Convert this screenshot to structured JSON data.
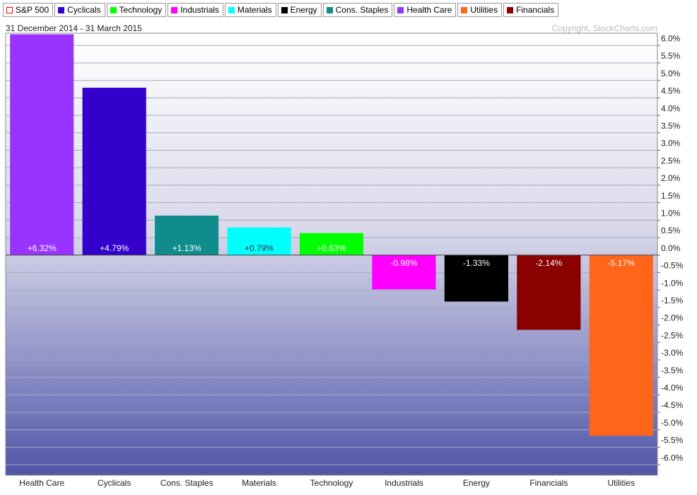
{
  "chart_data": {
    "type": "bar",
    "subtitle": "31 December 2014 - 31 March 2015",
    "annotation": "Copyright, StockCharts.com",
    "legend": [
      {
        "name": "S&P 500",
        "color": "#ff0000",
        "marker": "hollow"
      },
      {
        "name": "Cyclicals",
        "color": "#3300cc"
      },
      {
        "name": "Technology",
        "color": "#00ff00"
      },
      {
        "name": "Industrials",
        "color": "#ff00ff"
      },
      {
        "name": "Materials",
        "color": "#00ffff"
      },
      {
        "name": "Energy",
        "color": "#000000"
      },
      {
        "name": "Cons. Staples",
        "color": "#108c8c"
      },
      {
        "name": "Health Care",
        "color": "#9933ff"
      },
      {
        "name": "Utilities",
        "color": "#ff6619"
      },
      {
        "name": "Financials",
        "color": "#8b0000"
      }
    ],
    "categories": [
      "Health Care",
      "Cyclicals",
      "Cons. Staples",
      "Materials",
      "Technology",
      "Industrials",
      "Energy",
      "Financials",
      "Utilities"
    ],
    "values": [
      6.32,
      4.79,
      1.13,
      0.79,
      0.63,
      -0.98,
      -1.33,
      -2.14,
      -5.17
    ],
    "value_labels": [
      "+6.32%",
      "+4.79%",
      "+1.13%",
      "+0.79%",
      "+0.63%",
      "-0.98%",
      "-1.33%",
      "-2.14%",
      "-5.17%"
    ],
    "colors": [
      "#9933ff",
      "#3300cc",
      "#108c8c",
      "#00ffff",
      "#00ff00",
      "#ff00ff",
      "#000000",
      "#8b0000",
      "#ff6619"
    ],
    "ylim": [
      -6.3,
      6.35
    ],
    "yticks": [
      {
        "value": 6.0,
        "label": "6.0%"
      },
      {
        "value": 5.5,
        "label": "5.5%"
      },
      {
        "value": 5.0,
        "label": "5.0%"
      },
      {
        "value": 4.5,
        "label": "4.5%"
      },
      {
        "value": 4.0,
        "label": "4.0%"
      },
      {
        "value": 3.5,
        "label": "3.5%"
      },
      {
        "value": 3.0,
        "label": "3.0%"
      },
      {
        "value": 2.5,
        "label": "2.5%"
      },
      {
        "value": 2.0,
        "label": "2.0%"
      },
      {
        "value": 1.5,
        "label": "1.5%"
      },
      {
        "value": 1.0,
        "label": "1.0%"
      },
      {
        "value": 0.5,
        "label": "0.5%"
      },
      {
        "value": 0.0,
        "label": "0.0%"
      },
      {
        "value": -0.5,
        "label": "-0.5%"
      },
      {
        "value": -1.0,
        "label": "-1.0%"
      },
      {
        "value": -1.5,
        "label": "-1.5%"
      },
      {
        "value": -2.0,
        "label": "-2.0%"
      },
      {
        "value": -2.5,
        "label": "-2.5%"
      },
      {
        "value": -3.0,
        "label": "-3.0%"
      },
      {
        "value": -3.5,
        "label": "-3.5%"
      },
      {
        "value": -4.0,
        "label": "-4.0%"
      },
      {
        "value": -4.5,
        "label": "-4.5%"
      },
      {
        "value": -5.0,
        "label": "-5.0%"
      },
      {
        "value": -5.5,
        "label": "-5.5%"
      },
      {
        "value": -6.0,
        "label": "-6.0%"
      }
    ],
    "grid": true
  }
}
